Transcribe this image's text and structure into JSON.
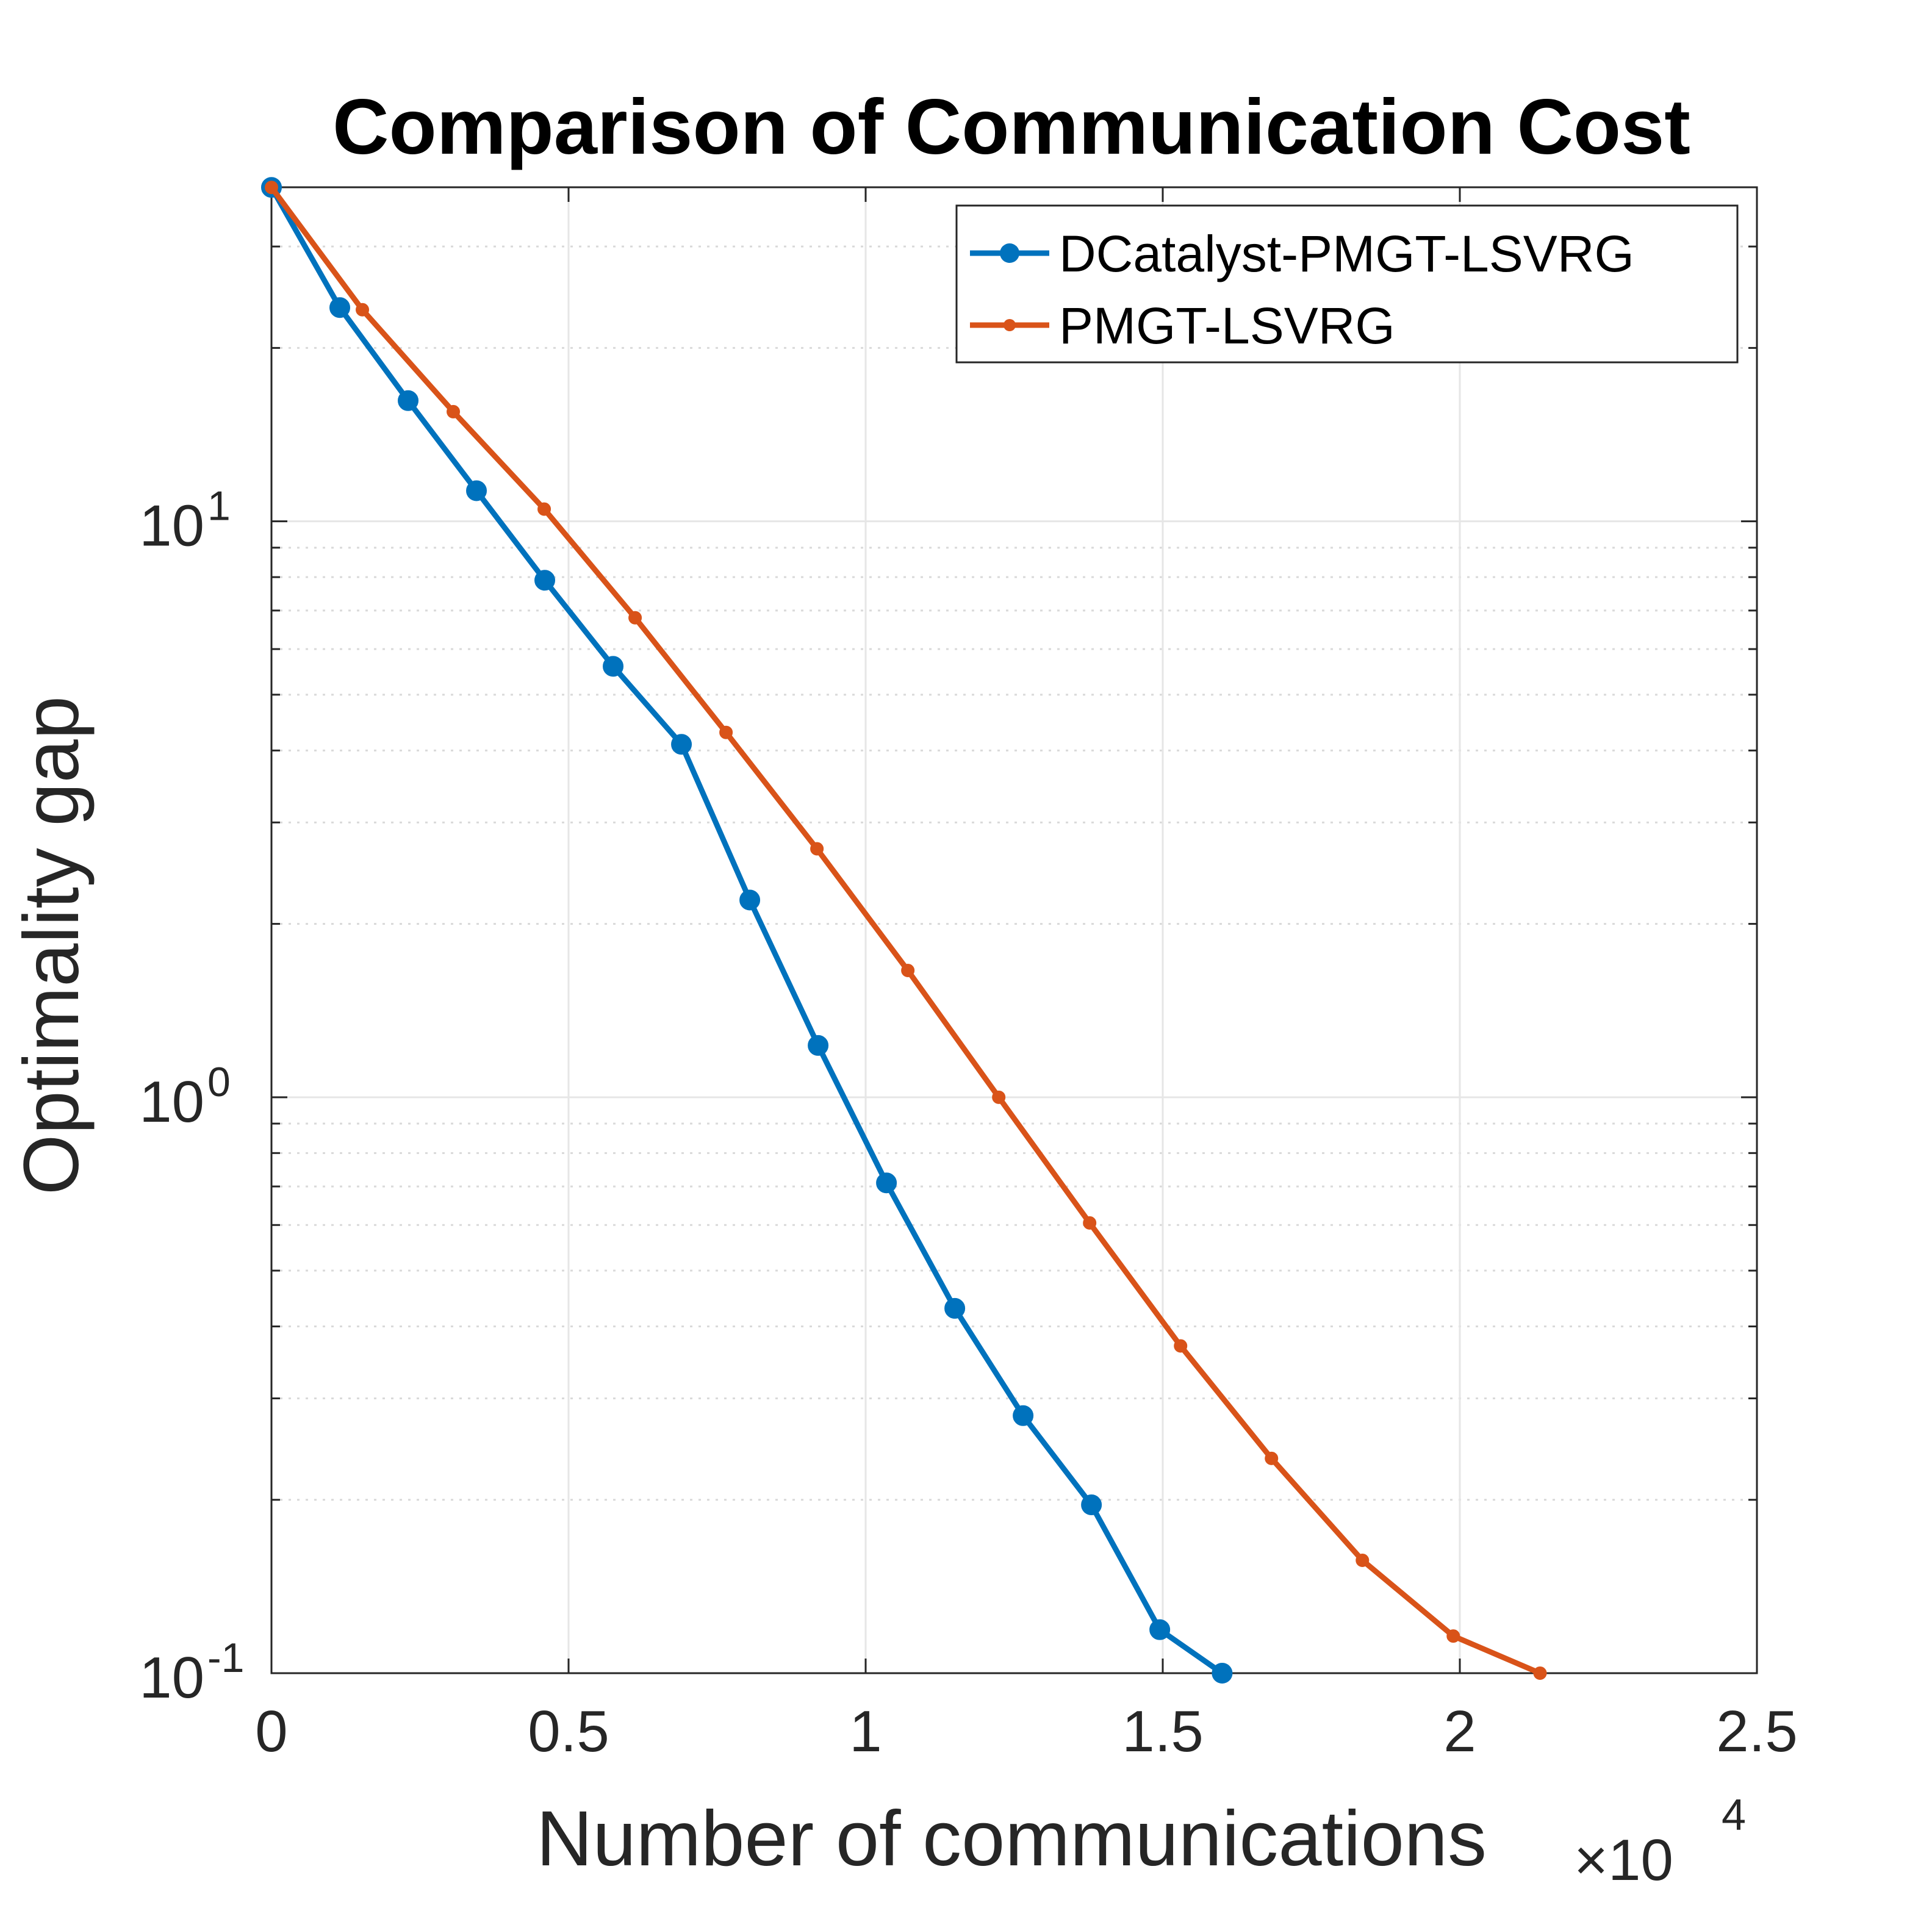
{
  "chart_data": {
    "type": "line",
    "title": "Comparison of Communication Cost",
    "xlabel": "Number of communications",
    "ylabel": "Optimality gap",
    "x_scale_exponent_label": {
      "base": "×10",
      "exponent": "4"
    },
    "x_multiplier": 10000,
    "xlim": [
      0,
      25000
    ],
    "ylim_log10": [
      -1,
      1.58
    ],
    "yscale": "log",
    "grid": true,
    "legend_position": "top-right",
    "x_ticks": [
      {
        "value": 0,
        "label": "0"
      },
      {
        "value": 5000,
        "label": "0.5"
      },
      {
        "value": 10000,
        "label": "1"
      },
      {
        "value": 15000,
        "label": "1.5"
      },
      {
        "value": 20000,
        "label": "2"
      },
      {
        "value": 25000,
        "label": "2.5"
      }
    ],
    "y_ticks": [
      {
        "value": 0.1,
        "base": "10",
        "exponent": "-1"
      },
      {
        "value": 1,
        "base": "10",
        "exponent": "0"
      },
      {
        "value": 10,
        "base": "10",
        "exponent": "1"
      }
    ],
    "series": [
      {
        "name": "DCatalyst-PMGT-LSVRG",
        "color": "#0072BD",
        "marker": "large-dot",
        "x": [
          0,
          1150,
          2300,
          3450,
          4600,
          5750,
          6900,
          8050,
          9200,
          10350,
          11500,
          12650,
          13800,
          14950,
          16000
        ],
        "y": [
          38,
          23.5,
          16.2,
          11.3,
          7.9,
          5.6,
          4.1,
          2.2,
          1.23,
          0.71,
          0.43,
          0.28,
          0.196,
          0.119,
          0.1
        ]
      },
      {
        "name": "PMGT-LSVRG",
        "color": "#D95319",
        "marker": "small-dot",
        "x": [
          0,
          1530,
          3060,
          4590,
          6120,
          7650,
          9180,
          10710,
          12240,
          13770,
          15300,
          16830,
          18360,
          19890,
          21350
        ],
        "y": [
          38,
          23.3,
          15.5,
          10.5,
          6.8,
          4.3,
          2.7,
          1.66,
          1.0,
          0.605,
          0.37,
          0.236,
          0.157,
          0.116,
          0.1
        ]
      }
    ]
  }
}
